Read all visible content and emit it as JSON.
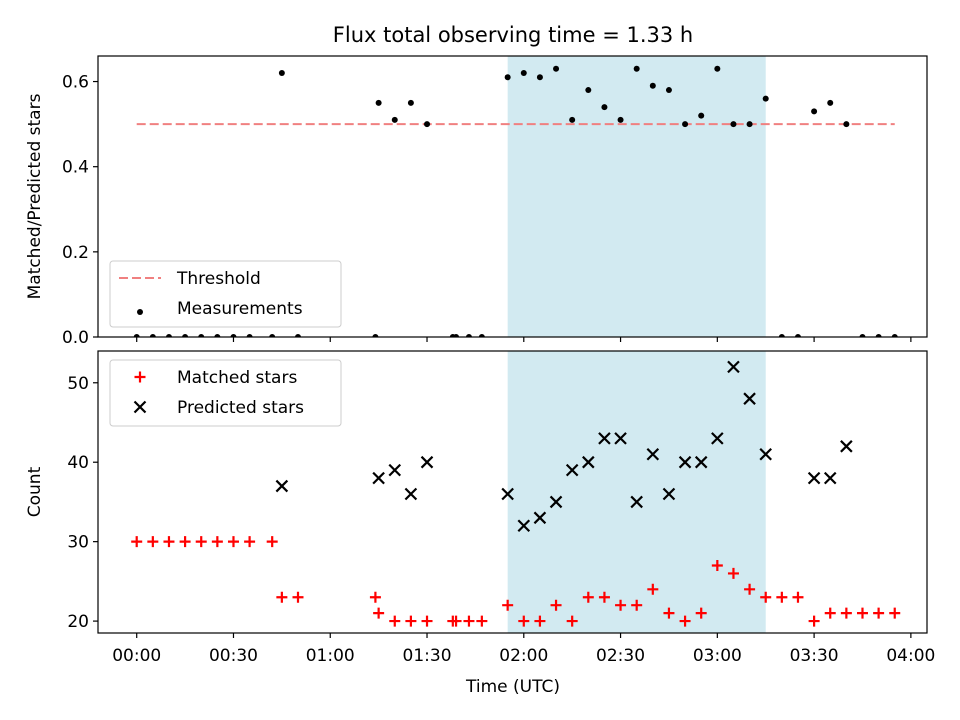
{
  "figure_title": "Flux total observing time = 1.33 h",
  "shared_x": {
    "label": "Time (UTC)",
    "unit": "minutes after 00:00 UTC",
    "range": [
      -12,
      245
    ],
    "ticks": [
      0,
      30,
      60,
      90,
      120,
      150,
      180,
      210,
      240
    ],
    "tick_labels": [
      "00:00",
      "00:30",
      "01:00",
      "01:30",
      "02:00",
      "02:30",
      "03:00",
      "03:30",
      "04:00"
    ]
  },
  "shaded_region": {
    "start": 115,
    "end": 195,
    "color": "#add8e6"
  },
  "chart_data": [
    {
      "type": "scatter",
      "panel": "top",
      "ylabel": "Matched/Predicted stars",
      "ylim": [
        0,
        0.66
      ],
      "yticks": [
        0.0,
        0.2,
        0.4,
        0.6
      ],
      "ytick_labels": [
        "0.0",
        "0.2",
        "0.4",
        "0.6"
      ],
      "legend_position": "lower-left",
      "threshold": {
        "name": "Threshold",
        "value": 0.5,
        "x_range": [
          0,
          235
        ],
        "color": "#f08080"
      },
      "series": [
        {
          "name": "Measurements",
          "color": "#000000",
          "marker": "dot",
          "x": [
            0,
            5,
            10,
            15,
            20,
            25,
            30,
            35,
            42,
            45,
            50,
            74,
            75,
            80,
            85,
            90,
            98,
            99,
            103,
            107,
            115,
            120,
            125,
            130,
            135,
            140,
            145,
            150,
            155,
            160,
            165,
            170,
            175,
            180,
            185,
            190,
            195,
            200,
            205,
            210,
            215,
            220,
            225,
            230,
            235
          ],
          "y": [
            0,
            0,
            0,
            0,
            0,
            0,
            0,
            0,
            0,
            0.62,
            0,
            0,
            0.55,
            0.51,
            0.55,
            0.5,
            0,
            0,
            0,
            0,
            0.61,
            0.62,
            0.61,
            0.63,
            0.51,
            0.58,
            0.54,
            0.51,
            0.63,
            0.59,
            0.58,
            0.5,
            0.52,
            0.63,
            0.5,
            0.5,
            0.56,
            0,
            0,
            0.53,
            0.55,
            0.5,
            0,
            0,
            0
          ]
        }
      ]
    },
    {
      "type": "scatter",
      "panel": "bottom",
      "ylabel": "Count",
      "ylim": [
        18.5,
        54
      ],
      "yticks": [
        20,
        30,
        40,
        50
      ],
      "ytick_labels": [
        "20",
        "30",
        "40",
        "50"
      ],
      "legend_position": "upper-left",
      "series": [
        {
          "name": "Matched stars",
          "color": "#ff0000",
          "marker": "plus",
          "x": [
            0,
            5,
            10,
            15,
            20,
            25,
            30,
            35,
            42,
            45,
            50,
            74,
            75,
            80,
            85,
            90,
            98,
            99,
            103,
            107,
            115,
            120,
            125,
            130,
            135,
            140,
            145,
            150,
            155,
            160,
            165,
            170,
            175,
            180,
            185,
            190,
            195,
            200,
            205,
            210,
            215,
            220,
            225,
            230,
            235
          ],
          "y": [
            30,
            30,
            30,
            30,
            30,
            30,
            30,
            30,
            30,
            23,
            23,
            23,
            21,
            20,
            20,
            20,
            20,
            20,
            20,
            20,
            22,
            20,
            20,
            22,
            20,
            23,
            23,
            22,
            22,
            24,
            21,
            20,
            21,
            27,
            26,
            24,
            23,
            23,
            23,
            20,
            21,
            21,
            21,
            21,
            21
          ]
        },
        {
          "name": "Predicted stars",
          "color": "#000000",
          "marker": "x",
          "x": [
            45,
            75,
            80,
            85,
            90,
            115,
            120,
            125,
            130,
            135,
            140,
            145,
            150,
            155,
            160,
            165,
            170,
            175,
            180,
            185,
            190,
            195,
            210,
            215,
            220
          ],
          "y": [
            37,
            38,
            39,
            36,
            40,
            36,
            32,
            33,
            35,
            39,
            40,
            43,
            43,
            35,
            41,
            36,
            40,
            40,
            43,
            52,
            48,
            41,
            38,
            38,
            42
          ]
        }
      ]
    }
  ]
}
